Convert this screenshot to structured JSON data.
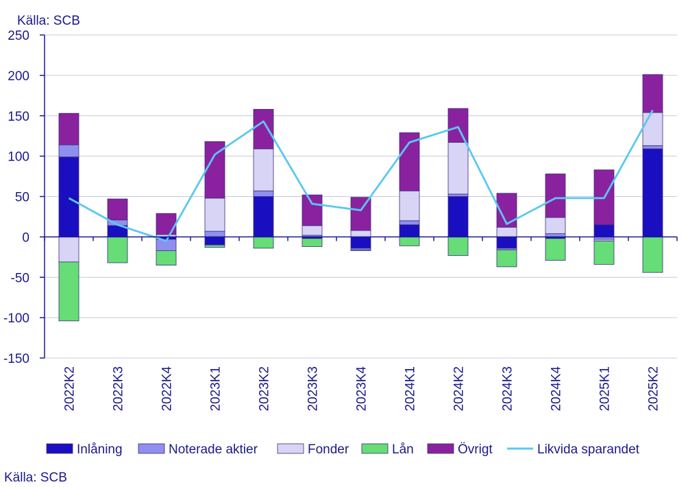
{
  "source_top": "Källa: SCB",
  "source_bottom": "Källa: SCB",
  "chart_data": {
    "type": "bar",
    "stacked": true,
    "title": "",
    "xlabel": "",
    "ylabel": "",
    "ylim": [
      -150,
      250
    ],
    "yticks": [
      -150,
      -100,
      -50,
      0,
      50,
      100,
      150,
      200,
      250
    ],
    "categories": [
      "2022K2",
      "2022K3",
      "2022K4",
      "2023K1",
      "2023K2",
      "2023K3",
      "2023K4",
      "2024K1",
      "2024K2",
      "2024K3",
      "2024K4",
      "2025K1",
      "2025K2"
    ],
    "series": [
      {
        "name": "Inlåning",
        "kind": "bar",
        "color": "#1a0fc0",
        "values": [
          99,
          14,
          -3,
          -10,
          50,
          -2,
          -14,
          15,
          50,
          -14,
          -2,
          15,
          109
        ]
      },
      {
        "name": "Noterade aktier",
        "kind": "bar",
        "color": "#8f8ff0",
        "values": [
          15,
          7,
          -14,
          7,
          7,
          2,
          -2,
          5,
          3,
          -2,
          4,
          -3,
          4
        ]
      },
      {
        "name": "Fonder",
        "kind": "bar",
        "color": "#d8d4f5",
        "values": [
          -31,
          0,
          3,
          41,
          52,
          12,
          8,
          37,
          64,
          12,
          20,
          -2,
          41
        ]
      },
      {
        "name": "Lån",
        "kind": "bar",
        "color": "#66dd77",
        "values": [
          -73,
          -32,
          -18,
          -3,
          -14,
          -10,
          -1,
          -11,
          -23,
          -21,
          -27,
          -29,
          -44
        ]
      },
      {
        "name": "Övrigt",
        "kind": "bar",
        "color": "#8a22a0",
        "values": [
          39,
          26,
          26,
          70,
          49,
          38,
          41,
          72,
          42,
          42,
          54,
          68,
          47
        ]
      },
      {
        "name": "Likvida sparandet",
        "kind": "line",
        "color": "#5bc8f0",
        "values": [
          48,
          15,
          -5,
          102,
          143,
          41,
          33,
          117,
          136,
          16,
          48,
          48,
          157
        ]
      }
    ]
  }
}
